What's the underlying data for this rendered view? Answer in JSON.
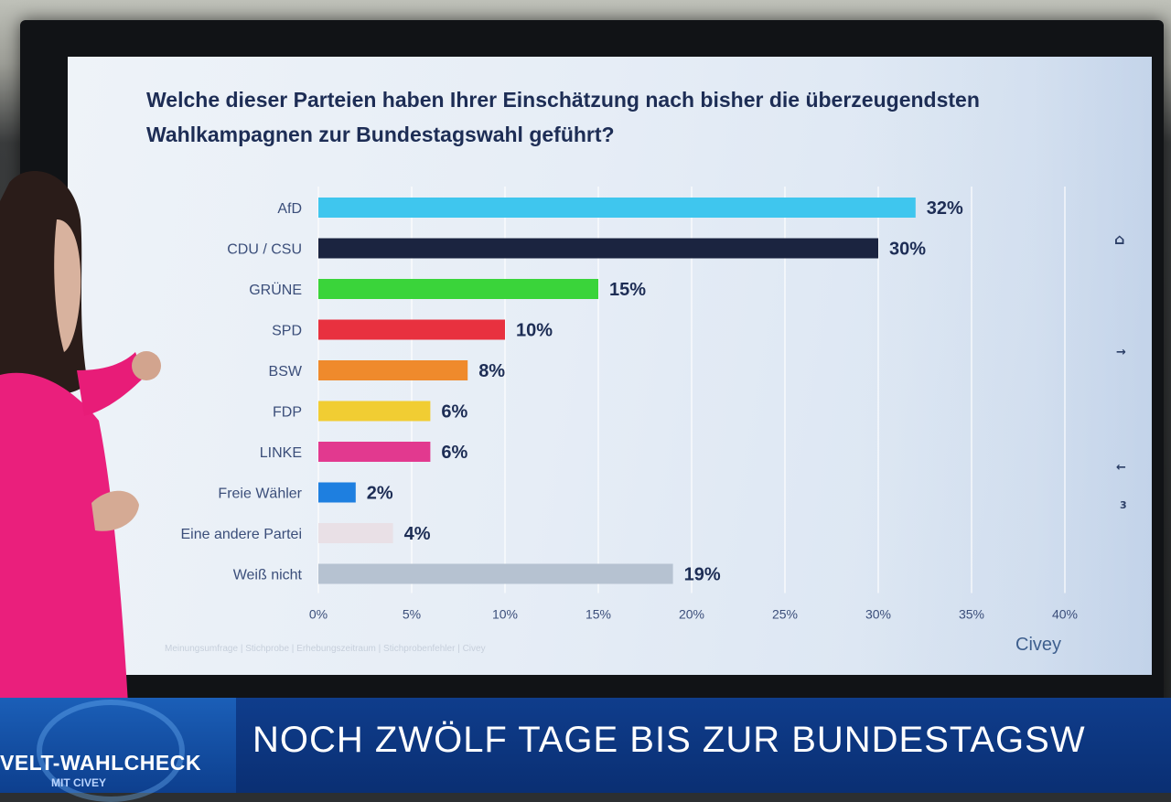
{
  "chart_data": {
    "type": "bar",
    "orientation": "horizontal",
    "title": "Welche dieser Parteien haben Ihrer Einschätzung nach bisher die überzeugendsten Wahlkampagnen zur Bundestagswahl geführt?",
    "categories": [
      "AfD",
      "CDU / CSU",
      "GRÜNE",
      "SPD",
      "BSW",
      "FDP",
      "LINKE",
      "Freie Wähler",
      "Eine andere Partei",
      "Weiß nicht"
    ],
    "values": [
      32,
      30,
      15,
      10,
      8,
      6,
      6,
      2,
      4,
      19
    ],
    "value_labels": [
      "32%",
      "30%",
      "15%",
      "10%",
      "8%",
      "6%",
      "6%",
      "2%",
      "4%",
      "19%"
    ],
    "colors": [
      "#3fc6ee",
      "#1b2440",
      "#3ad43a",
      "#e8313f",
      "#ef8a2c",
      "#f1cd33",
      "#e2398f",
      "#1e7fe0",
      "#e9e0e6",
      "#b6c2d1"
    ],
    "xlim": [
      0,
      40
    ],
    "x_ticks": [
      "0%",
      "5%",
      "10%",
      "15%",
      "20%",
      "25%",
      "30%",
      "35%",
      "40%"
    ],
    "grid": true,
    "legend": "none"
  },
  "screen": {
    "footnote": "Meinungsumfrage | Stichprobe | Erhebungszeitraum | Stichprobenfehler | Civey",
    "brand": "Civey"
  },
  "banner": {
    "show_title": "VELT-WAHLCHECK",
    "show_subtitle": "MIT CIVEY",
    "ticker": "NOCH ZWÖLF TAGE BIS ZUR BUNDESTAGSW"
  },
  "icons": [
    "home-icon",
    "arrow-right-icon",
    "arrow-left-icon",
    "page-number"
  ],
  "page_number": "3"
}
